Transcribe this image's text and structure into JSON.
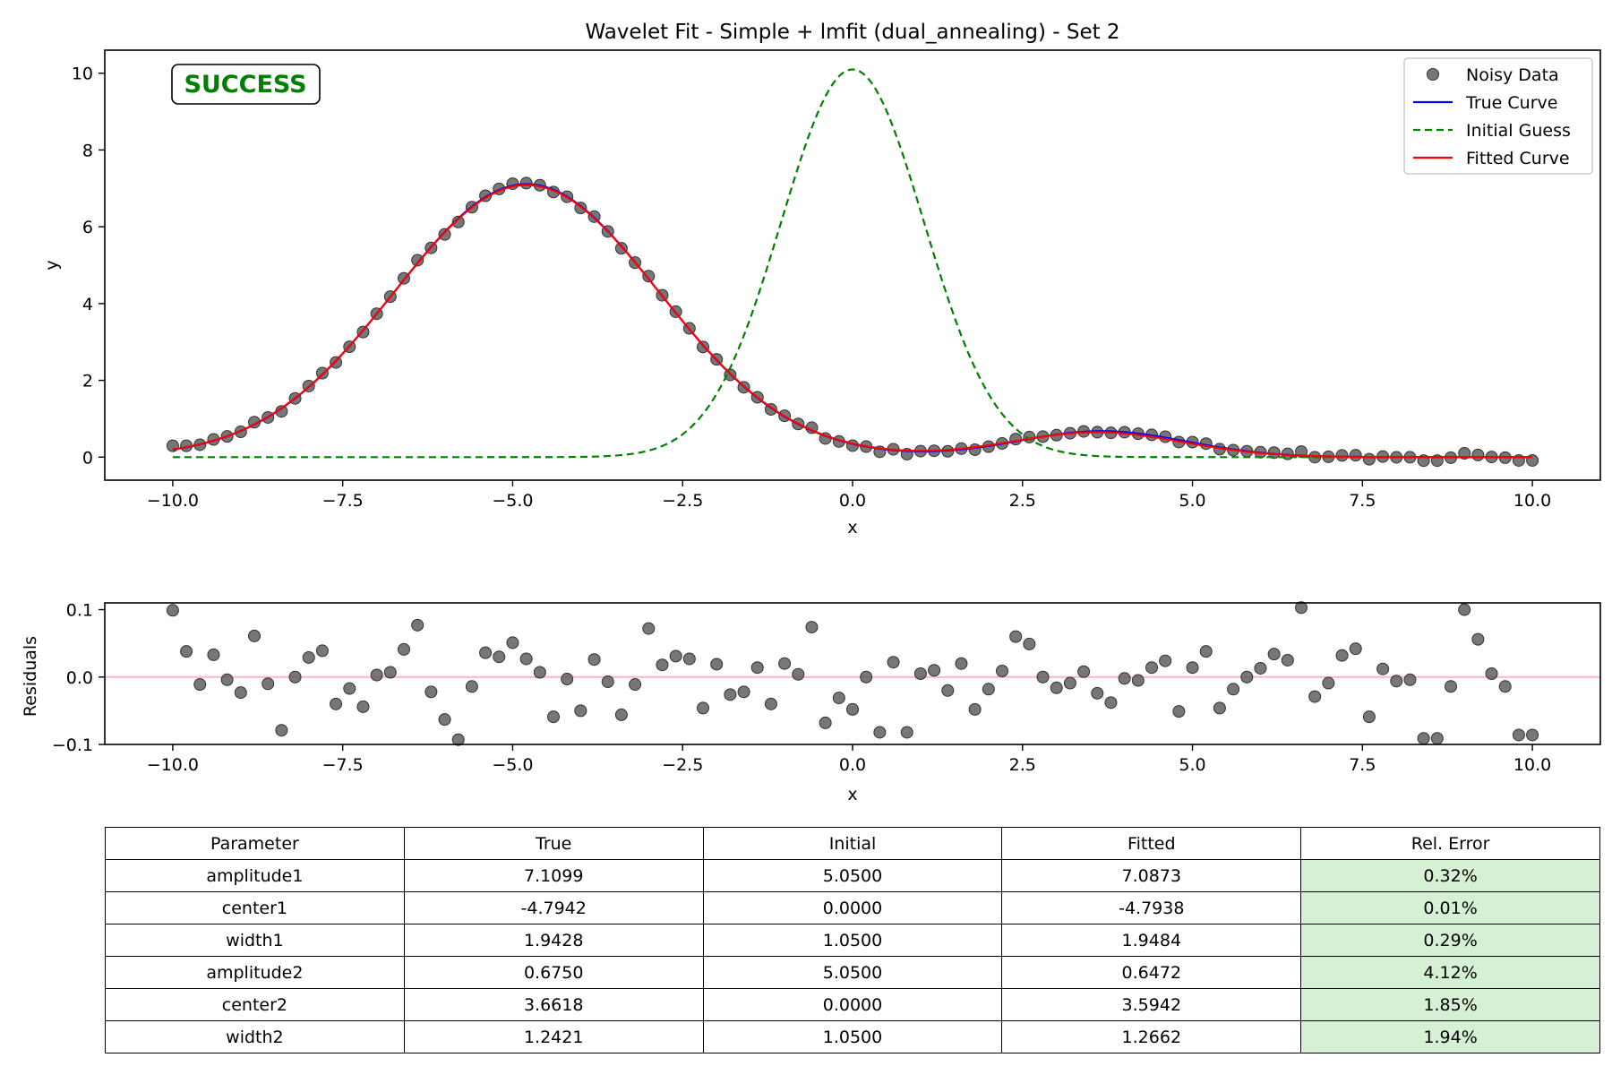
{
  "colors": {
    "data_marker": "#555555",
    "true_curve": "#0000ff",
    "initial_guess": "#008000",
    "fitted_curve": "#ff0000",
    "zero_line": "#ffb6c1",
    "status": "#008000",
    "table_error_bg": "#d5f0d5"
  },
  "status_badge": "SUCCESS",
  "chart_data": [
    {
      "type": "line",
      "title": "Wavelet Fit - Simple + lmfit (dual_annealing) - Set 2",
      "xlabel": "x",
      "ylabel": "y",
      "xlim": [
        -11,
        11
      ],
      "ylim": [
        -0.6,
        10.6
      ],
      "xticks": [
        -10,
        -7.5,
        -5,
        -2.5,
        0,
        2.5,
        5,
        7.5,
        10
      ],
      "xtick_labels": [
        "−10.0",
        "−7.5",
        "−5.0",
        "−2.5",
        "0.0",
        "2.5",
        "5.0",
        "7.5",
        "10.0"
      ],
      "yticks": [
        0,
        2,
        4,
        6,
        8,
        10
      ],
      "ytick_labels": [
        "0",
        "2",
        "4",
        "6",
        "8",
        "10"
      ],
      "legend_position": "top-right",
      "series": [
        {
          "name": "Noisy Data",
          "kind": "scatter",
          "source": "true_model_plus_residuals"
        },
        {
          "name": "True Curve",
          "kind": "line",
          "style": "solid",
          "model": "gauss2",
          "params": {
            "amplitude1": 7.1099,
            "center1": -4.7942,
            "width1": 1.9428,
            "amplitude2": 0.675,
            "center2": 3.6618,
            "width2": 1.2421
          }
        },
        {
          "name": "Initial Guess",
          "kind": "line",
          "style": "dashed",
          "model": "gauss2",
          "params": {
            "amplitude1": 5.05,
            "center1": 0.0,
            "width1": 1.05,
            "amplitude2": 5.05,
            "center2": 0.0,
            "width2": 1.05
          }
        },
        {
          "name": "Fitted Curve",
          "kind": "line",
          "style": "solid",
          "model": "gauss2",
          "params": {
            "amplitude1": 7.0873,
            "center1": -4.7938,
            "width1": 1.9484,
            "amplitude2": 0.6472,
            "center2": 3.5942,
            "width2": 1.2662
          }
        }
      ]
    },
    {
      "type": "scatter",
      "xlabel": "x",
      "ylabel": "Residuals",
      "xlim": [
        -11,
        11
      ],
      "ylim": [
        -0.1,
        0.11
      ],
      "xticks": [
        -10,
        -7.5,
        -5,
        -2.5,
        0,
        2.5,
        5,
        7.5,
        10
      ],
      "xtick_labels": [
        "−10.0",
        "−7.5",
        "−5.0",
        "−2.5",
        "0.0",
        "2.5",
        "5.0",
        "7.5",
        "10.0"
      ],
      "yticks": [
        0.1,
        0.0,
        -0.1
      ],
      "ytick_labels": [
        "0.1",
        "0.0",
        "−0.1"
      ],
      "reference_line": 0,
      "x": [
        -10.0,
        -9.8,
        -9.6,
        -9.4,
        -9.2,
        -9.0,
        -8.8,
        -8.6,
        -8.4,
        -8.2,
        -8.0,
        -7.8,
        -7.6,
        -7.4,
        -7.2,
        -7.0,
        -6.8,
        -6.6,
        -6.4,
        -6.2,
        -6.0,
        -5.8,
        -5.6,
        -5.4,
        -5.2,
        -5.0,
        -4.8,
        -4.6,
        -4.4,
        -4.2,
        -4.0,
        -3.8,
        -3.6,
        -3.4,
        -3.2,
        -3.0,
        -2.8,
        -2.6,
        -2.4,
        -2.2,
        -2.0,
        -1.8,
        -1.6,
        -1.4,
        -1.2,
        -1.0,
        -0.8,
        -0.6,
        -0.4,
        -0.2,
        0.0,
        0.2,
        0.4,
        0.6,
        0.8,
        1.0,
        1.2,
        1.4,
        1.6,
        1.8,
        2.0,
        2.2,
        2.4,
        2.6,
        2.8,
        3.0,
        3.2,
        3.4,
        3.6,
        3.8,
        4.0,
        4.2,
        4.4,
        4.6,
        4.8,
        5.0,
        5.2,
        5.4,
        5.6,
        5.8,
        6.0,
        6.2,
        6.4,
        6.6,
        6.8,
        7.0,
        7.2,
        7.4,
        7.6,
        7.8,
        8.0,
        8.2,
        8.4,
        8.6,
        8.8,
        9.0,
        9.2,
        9.4,
        9.6,
        9.8,
        10.0
      ],
      "residuals": [
        0.099,
        0.038,
        -0.011,
        0.033,
        -0.004,
        -0.023,
        0.061,
        -0.01,
        -0.079,
        0.0,
        0.029,
        0.039,
        -0.04,
        -0.017,
        -0.044,
        0.003,
        0.007,
        0.041,
        0.077,
        -0.022,
        -0.063,
        -0.093,
        -0.014,
        0.036,
        0.03,
        0.051,
        0.027,
        0.007,
        -0.059,
        -0.003,
        -0.05,
        0.026,
        -0.007,
        -0.056,
        -0.011,
        0.072,
        0.018,
        0.031,
        0.027,
        -0.046,
        0.019,
        -0.026,
        -0.022,
        0.014,
        -0.04,
        0.02,
        0.004,
        0.074,
        -0.068,
        -0.031,
        -0.048,
        0.0,
        -0.082,
        0.022,
        -0.082,
        0.005,
        0.01,
        -0.02,
        0.02,
        -0.048,
        -0.018,
        0.009,
        0.06,
        0.049,
        0.0,
        -0.016,
        -0.009,
        0.008,
        -0.024,
        -0.038,
        -0.002,
        -0.005,
        0.014,
        0.024,
        -0.051,
        0.014,
        0.038,
        -0.046,
        -0.018,
        0.0,
        0.013,
        0.034,
        0.025,
        0.103,
        -0.029,
        -0.009,
        0.032,
        0.042,
        -0.059,
        0.012,
        -0.006,
        -0.004,
        -0.091,
        -0.091,
        -0.014,
        0.1,
        0.056,
        0.005,
        -0.014,
        -0.086,
        -0.086
      ]
    }
  ],
  "table": {
    "headers": [
      "Parameter",
      "True",
      "Initial",
      "Fitted",
      "Rel. Error"
    ],
    "rows": [
      [
        "amplitude1",
        "7.1099",
        "5.0500",
        "7.0873",
        "0.32%"
      ],
      [
        "center1",
        "-4.7942",
        "0.0000",
        "-4.7938",
        "0.01%"
      ],
      [
        "width1",
        "1.9428",
        "1.0500",
        "1.9484",
        "0.29%"
      ],
      [
        "amplitude2",
        "0.6750",
        "5.0500",
        "0.6472",
        "4.12%"
      ],
      [
        "center2",
        "3.6618",
        "0.0000",
        "3.5942",
        "1.85%"
      ],
      [
        "width2",
        "1.2421",
        "1.0500",
        "1.2662",
        "1.94%"
      ]
    ]
  }
}
